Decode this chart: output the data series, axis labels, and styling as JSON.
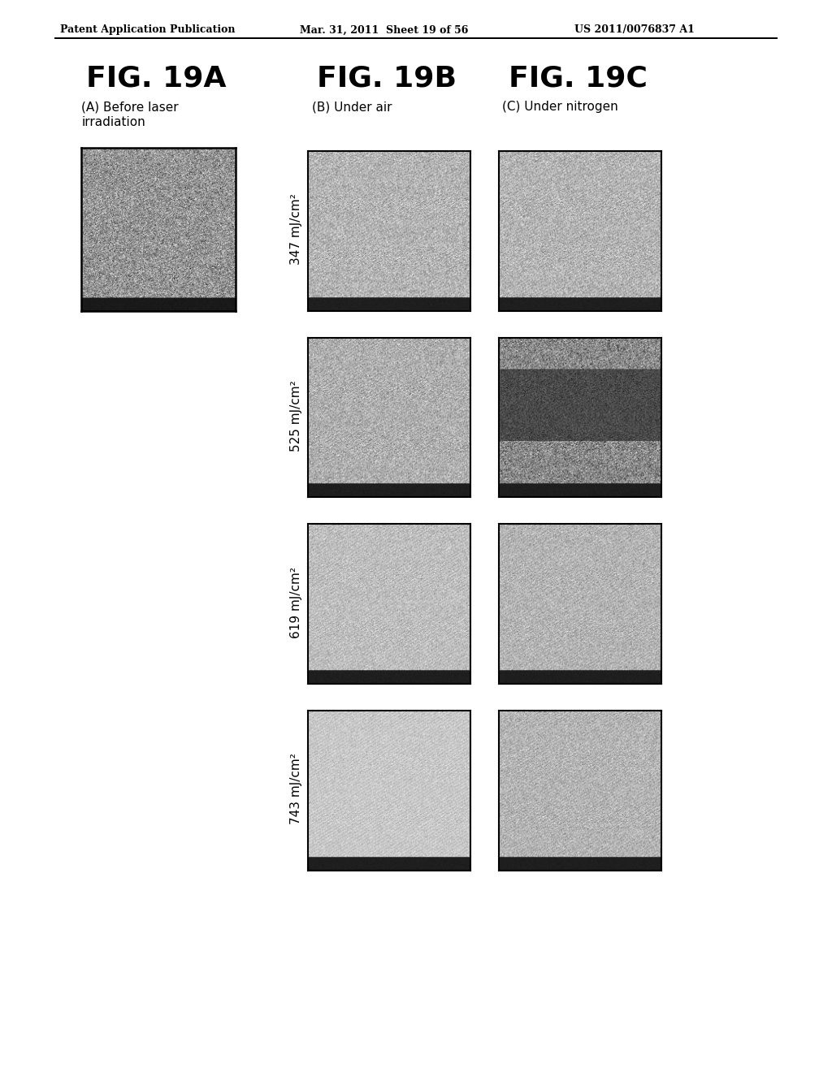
{
  "background_color": "#ffffff",
  "header_text": "Patent Application Publication",
  "header_date": "Mar. 31, 2011  Sheet 19 of 56",
  "header_patent": "US 2011/0076837 A1",
  "fig_titles": [
    "FIG. 19A",
    "FIG. 19B",
    "FIG. 19C"
  ],
  "fig_subtitles_A": "(A) Before laser\nirradiation",
  "fig_subtitle_B": "(B) Under air",
  "fig_subtitle_C": "(C) Under nitrogen",
  "row_labels": [
    "347 mJ/cm²",
    "525 mJ/cm²",
    "619 mJ/cm²",
    "743 mJ/cm²"
  ],
  "panel_A": {
    "noise_seed": 42,
    "base_gray": 0.6,
    "noise_scale": 0.15,
    "bar_gray": 0.1
  },
  "panels_B": [
    {
      "noise_seed": 11,
      "base_gray": 0.72,
      "noise_scale": 0.1,
      "bar_gray": 0.12
    },
    {
      "noise_seed": 22,
      "base_gray": 0.7,
      "noise_scale": 0.1,
      "bar_gray": 0.12
    },
    {
      "noise_seed": 33,
      "base_gray": 0.76,
      "noise_scale": 0.07,
      "bar_gray": 0.12
    },
    {
      "noise_seed": 44,
      "base_gray": 0.8,
      "noise_scale": 0.05,
      "bar_gray": 0.12
    }
  ],
  "panels_C": [
    {
      "noise_seed": 55,
      "base_gray": 0.72,
      "noise_scale": 0.1,
      "bar_gray": 0.12,
      "dark_middle": false
    },
    {
      "noise_seed": 66,
      "base_gray": 0.55,
      "noise_scale": 0.15,
      "bar_gray": 0.12,
      "dark_middle": true
    },
    {
      "noise_seed": 77,
      "base_gray": 0.72,
      "noise_scale": 0.08,
      "bar_gray": 0.12,
      "dark_middle": false
    },
    {
      "noise_seed": 88,
      "base_gray": 0.72,
      "noise_scale": 0.08,
      "bar_gray": 0.12,
      "dark_middle": false
    }
  ],
  "title_fontsize": 26,
  "subtitle_fontsize": 11,
  "row_label_fontsize": 11,
  "header_fontsize": 9
}
